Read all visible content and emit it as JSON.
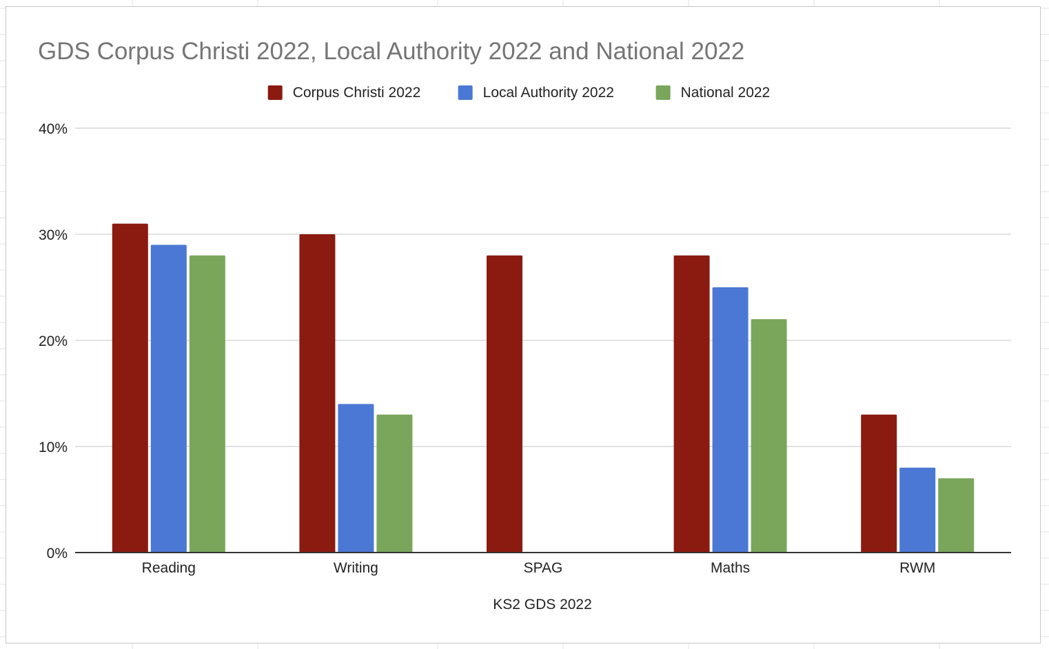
{
  "chart_data": {
    "type": "bar",
    "title": "GDS Corpus Christi 2022, Local Authority 2022 and National 2022",
    "xlabel": "KS2 GDS 2022",
    "ylabel": "",
    "categories": [
      "Reading",
      "Writing",
      "SPAG",
      "Maths",
      "RWM"
    ],
    "series": [
      {
        "name": "Corpus Christi 2022",
        "color": "#8b1a10",
        "values": [
          31,
          30,
          28,
          28,
          13
        ]
      },
      {
        "name": "Local Authority 2022",
        "color": "#4a78d4",
        "values": [
          29,
          14,
          null,
          25,
          8
        ]
      },
      {
        "name": "National 2022",
        "color": "#79a65a",
        "values": [
          28,
          13,
          null,
          22,
          7
        ]
      }
    ],
    "ylim": [
      0,
      40
    ],
    "yticks": [
      "0%",
      "10%",
      "20%",
      "30%",
      "40%"
    ],
    "ytick_values": [
      0,
      10,
      20,
      30,
      40
    ],
    "grid": true,
    "legend": "top-center"
  }
}
